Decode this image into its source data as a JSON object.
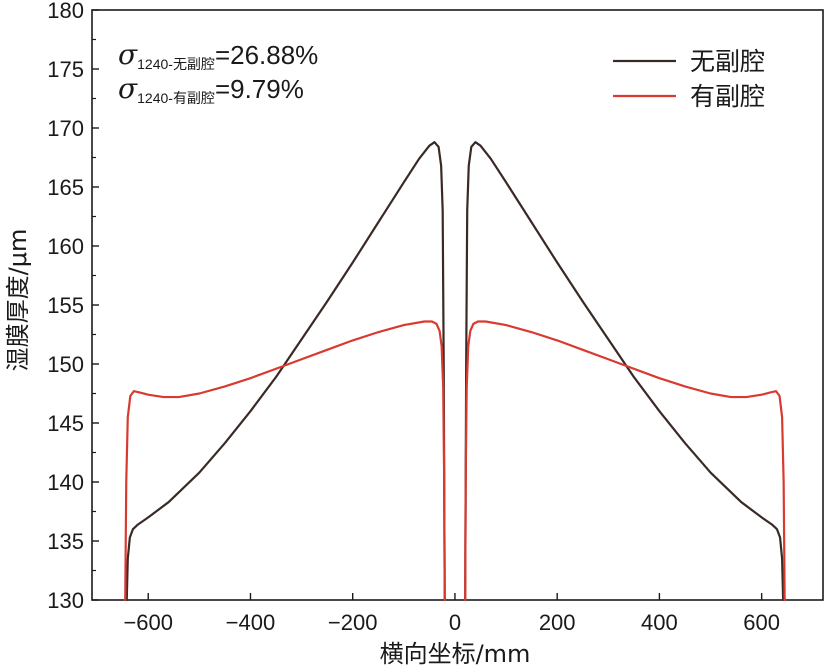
{
  "chart_data": {
    "type": "line",
    "title": "",
    "xlabel": "横向坐标/mm",
    "ylabel": "湿膜厚度/μm",
    "xlim": [
      -710,
      720
    ],
    "ylim": [
      130,
      180
    ],
    "x_ticks": [
      -600,
      -400,
      -200,
      0,
      200,
      400,
      600
    ],
    "x_tick_labels": [
      "−600",
      "−400",
      "−200",
      "0",
      "200",
      "400",
      "600"
    ],
    "y_ticks": [
      130,
      135,
      140,
      145,
      150,
      155,
      160,
      165,
      170,
      175,
      180
    ],
    "y_tick_labels": [
      "130",
      "135",
      "140",
      "145",
      "150",
      "155",
      "160",
      "165",
      "170",
      "175",
      "180"
    ],
    "grid": false,
    "legend_position": "top-right",
    "annotations": [
      {
        "symbol": "σ",
        "subscript_num": "1240-",
        "subscript_cjk": "无副腔",
        "value": "=26.88%"
      },
      {
        "symbol": "σ",
        "subscript_num": "1240-",
        "subscript_cjk": "有副腔",
        "value": "=9.79%"
      }
    ],
    "series": [
      {
        "name": "无副腔",
        "color": "#3a2a26",
        "x": [
          -642,
          -640,
          -636,
          -630,
          -620,
          -600,
          -560,
          -500,
          -450,
          -400,
          -350,
          -300,
          -250,
          -200,
          -150,
          -100,
          -70,
          -50,
          -40,
          -32,
          -27,
          -24,
          -22,
          -21,
          -20,
          20,
          21,
          22,
          24,
          27,
          32,
          40,
          50,
          70,
          100,
          150,
          200,
          250,
          300,
          350,
          400,
          450,
          500,
          560,
          600,
          620,
          630,
          636,
          640,
          642
        ],
        "y": [
          130,
          133.5,
          135.3,
          136.0,
          136.4,
          137.0,
          138.3,
          140.8,
          143.3,
          146.0,
          148.9,
          152.1,
          155.3,
          158.6,
          162.0,
          165.4,
          167.4,
          168.5,
          168.8,
          168.4,
          166.8,
          163,
          150,
          140,
          130,
          130,
          140,
          150,
          163,
          166.8,
          168.4,
          168.8,
          168.5,
          167.4,
          165.4,
          162.0,
          158.6,
          155.3,
          152.1,
          148.9,
          146.0,
          143.3,
          140.8,
          138.3,
          137.0,
          136.4,
          136.0,
          135.3,
          133.5,
          130
        ]
      },
      {
        "name": "有副腔",
        "color": "#d93a30",
        "x": [
          -645,
          -643,
          -640,
          -635,
          -628,
          -618,
          -600,
          -570,
          -540,
          -500,
          -450,
          -400,
          -350,
          -300,
          -250,
          -200,
          -150,
          -100,
          -60,
          -45,
          -36,
          -30,
          -26,
          -23,
          -21,
          -20,
          20,
          21,
          23,
          26,
          30,
          36,
          45,
          60,
          100,
          150,
          200,
          250,
          300,
          350,
          400,
          450,
          500,
          540,
          570,
          600,
          618,
          628,
          635,
          640,
          643,
          645
        ],
        "y": [
          130,
          140,
          145.5,
          147.3,
          147.7,
          147.6,
          147.4,
          147.2,
          147.2,
          147.5,
          148.1,
          148.8,
          149.6,
          150.4,
          151.2,
          152.0,
          152.7,
          153.3,
          153.6,
          153.6,
          153.4,
          152.8,
          151.5,
          148,
          140,
          130,
          130,
          140,
          148,
          151.5,
          152.8,
          153.4,
          153.6,
          153.6,
          153.3,
          152.7,
          152.0,
          151.2,
          150.4,
          149.6,
          148.8,
          148.1,
          147.5,
          147.2,
          147.2,
          147.4,
          147.6,
          147.7,
          147.3,
          145.5,
          140,
          130
        ]
      }
    ]
  }
}
